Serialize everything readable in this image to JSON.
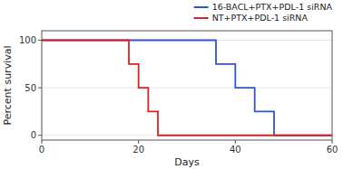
{
  "chart_data": {
    "type": "step",
    "xlabel": "Days",
    "ylabel": "Percent survival",
    "xlim": [
      0,
      60
    ],
    "ylim": [
      -5,
      110
    ],
    "xticks": [
      0,
      20,
      40,
      60
    ],
    "yticks": [
      0,
      50,
      100
    ],
    "legend": "upper right",
    "series": [
      {
        "name": "16-BACL+PTX+PDL-1 siRNA",
        "color": "#3355cc",
        "x": [
          0,
          36,
          36,
          40,
          40,
          44,
          44,
          48,
          48,
          60
        ],
        "values": [
          100,
          100,
          75,
          75,
          50,
          50,
          25,
          25,
          0,
          0
        ]
      },
      {
        "name": "NT+PTX+PDL-1 siRNA",
        "color": "#dd2222",
        "x": [
          0,
          18,
          18,
          20,
          20,
          22,
          22,
          24,
          24,
          60
        ],
        "values": [
          100,
          100,
          75,
          75,
          50,
          50,
          25,
          25,
          0,
          0
        ]
      }
    ]
  }
}
